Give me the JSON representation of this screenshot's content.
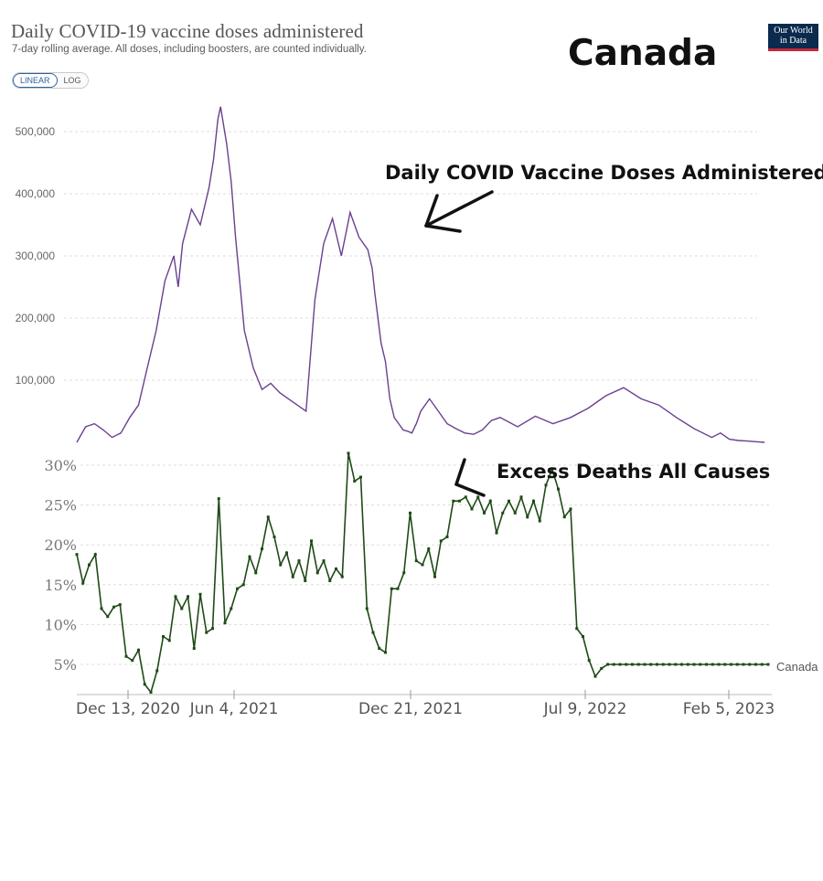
{
  "header": {
    "title": "Daily COVID-19 vaccine doses administered",
    "subtitle": "7-day rolling average. All doses, including boosters, are counted individually.",
    "toggle": {
      "linear": "LINEAR",
      "log": "LOG"
    },
    "country": "Canada",
    "logo_line1": "Our World",
    "logo_line2": "in Data"
  },
  "colors": {
    "vaccine": "#6b3f8f",
    "deaths": "#1f4a17",
    "gridline": "#dddddd"
  },
  "chart_data": [
    {
      "type": "line",
      "title": "Daily COVID-19 vaccine doses administered",
      "annotation": "Daily COVID Vaccine Doses Administered",
      "x_start": "Dec 13, 2020",
      "x_end": "Feb 5, 2023",
      "ylim": [
        0,
        550000
      ],
      "yticks": [
        100000,
        200000,
        300000,
        400000,
        500000
      ],
      "ytick_labels": [
        "100,000",
        "200,000",
        "300,000",
        "400,000",
        "500,000"
      ],
      "series": [
        {
          "name": "Canada",
          "x_days": [
            0,
            10,
            20,
            30,
            40,
            50,
            60,
            70,
            80,
            90,
            100,
            110,
            115,
            120,
            130,
            140,
            150,
            155,
            160,
            163,
            170,
            175,
            180,
            190,
            200,
            210,
            220,
            230,
            240,
            250,
            260,
            270,
            280,
            290,
            300,
            310,
            320,
            330,
            335,
            338,
            345,
            350,
            355,
            360,
            365,
            370,
            375,
            380,
            385,
            390,
            400,
            410,
            420,
            430,
            440,
            450,
            460,
            470,
            480,
            500,
            520,
            540,
            560,
            580,
            600,
            620,
            640,
            660,
            680,
            700,
            720,
            730,
            740,
            750,
            760,
            770,
            780
          ],
          "values": [
            0,
            25000,
            30000,
            20000,
            8000,
            15000,
            40000,
            60000,
            120000,
            180000,
            260000,
            300000,
            250000,
            320000,
            375000,
            350000,
            410000,
            455000,
            520000,
            540000,
            480000,
            420000,
            330000,
            180000,
            120000,
            85000,
            95000,
            80000,
            70000,
            60000,
            50000,
            230000,
            320000,
            360000,
            300000,
            370000,
            330000,
            310000,
            280000,
            240000,
            160000,
            130000,
            70000,
            40000,
            30000,
            20000,
            18000,
            15000,
            30000,
            50000,
            70000,
            50000,
            30000,
            22000,
            15000,
            13000,
            20000,
            35000,
            40000,
            25000,
            42000,
            30000,
            40000,
            55000,
            75000,
            88000,
            70000,
            60000,
            40000,
            22000,
            8000,
            15000,
            5000,
            3000,
            2000,
            1000,
            0
          ]
        }
      ]
    },
    {
      "type": "line",
      "title": "Excess Deaths All Causes",
      "annotation": "Excess Deaths All Causes",
      "x_start": "Dec 13, 2020",
      "x_end": "Feb 5, 2023",
      "xtick_labels": [
        "Dec 13, 2020",
        "Jun 4, 2021",
        "Dec 21, 2021",
        "Jul 9, 2022",
        "Feb 5, 2023"
      ],
      "ylim": [
        0,
        32
      ],
      "yticks": [
        5,
        10,
        15,
        20,
        25,
        30
      ],
      "ytick_labels": [
        "5%",
        "10%",
        "15%",
        "20%",
        "25%",
        "30%"
      ],
      "series": [
        {
          "name": "Canada",
          "x_days": [
            0,
            7,
            14,
            21,
            28,
            35,
            42,
            49,
            56,
            63,
            70,
            77,
            84,
            91,
            98,
            105,
            112,
            119,
            126,
            133,
            140,
            147,
            154,
            161,
            168,
            175,
            182,
            189,
            196,
            203,
            210,
            217,
            224,
            231,
            238,
            245,
            252,
            259,
            266,
            273,
            280,
            287,
            294,
            301,
            308,
            315,
            322,
            329,
            336,
            343,
            350,
            357,
            364,
            371,
            378,
            385,
            392,
            399,
            406,
            413,
            420,
            427,
            434,
            441,
            448,
            455,
            462,
            469,
            476,
            483,
            490,
            497,
            504,
            511,
            518,
            525,
            532,
            539,
            546,
            553,
            560,
            567,
            574,
            581,
            588,
            595,
            602,
            609,
            616,
            623,
            630,
            637,
            644,
            651,
            658,
            665,
            672,
            679,
            686,
            693,
            700,
            707,
            714,
            721,
            728,
            735,
            742,
            749,
            756,
            763,
            770,
            777,
            784
          ],
          "values": [
            18.8,
            15.2,
            17.5,
            18.8,
            12.0,
            11.0,
            12.2,
            12.5,
            6.0,
            5.5,
            6.8,
            2.5,
            1.5,
            4.2,
            8.5,
            8.0,
            13.5,
            12.0,
            13.5,
            7.0,
            13.8,
            9.0,
            9.5,
            25.8,
            10.2,
            12.0,
            14.5,
            15.0,
            18.5,
            16.5,
            19.5,
            23.5,
            21.0,
            17.5,
            19.0,
            16.0,
            18.0,
            15.5,
            20.5,
            16.5,
            18.0,
            15.5,
            17.0,
            16.0,
            31.5,
            28.0,
            28.5,
            12.0,
            9.0,
            7.0,
            6.5,
            14.5,
            14.5,
            16.5,
            24.0,
            18.0,
            17.5,
            19.5,
            16.0,
            20.5,
            21.0,
            25.5,
            25.5,
            26.0,
            24.5,
            26.0,
            24.0,
            25.5,
            21.5,
            24.0,
            25.5,
            24.0,
            26.0,
            23.5,
            25.5,
            23.0,
            27.5,
            29.5,
            27.0,
            23.5,
            24.5,
            9.5,
            8.5,
            5.5,
            3.5,
            4.5,
            5.0,
            5.0,
            5.0,
            5.0,
            5.0,
            5.0,
            5.0,
            5.0,
            5.0,
            5.0,
            5.0,
            5.0,
            5.0,
            5.0,
            5.0,
            5.0,
            5.0,
            5.0,
            5.0,
            5.0,
            5.0,
            5.0,
            5.0,
            5.0,
            5.0,
            5.0,
            5.0
          ],
          "end_label": "Canada"
        }
      ]
    }
  ]
}
